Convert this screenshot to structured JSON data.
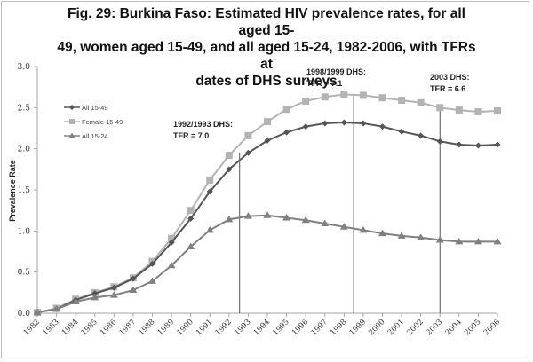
{
  "chart_data": {
    "type": "line",
    "title": "Fig. 29:  Burkina Faso:  Estimated HIV prevalence rates, for all aged 15-49, women aged 15-49, and all aged 15-24, 1982-2006, with TFRs at dates of DHS surveys",
    "title_lines": [
      "Fig. 29:  Burkina Faso:  Estimated HIV prevalence rates, for all aged 15-",
      "49, women aged 15-49, and all aged 15-24, 1982-2006, with TFRs at",
      "dates of DHS surveys"
    ],
    "xlabel": "",
    "ylabel": "Prevalence Rate",
    "ylim": [
      0,
      3.0
    ],
    "yticks": [
      "0.0",
      "0.5",
      "1.0",
      "1.5",
      "2.0",
      "2.5",
      "3.0"
    ],
    "ytick_values": [
      0,
      0.5,
      1.0,
      1.5,
      2.0,
      2.5,
      3.0
    ],
    "grid": false,
    "legend_position": "top-left",
    "categories": [
      "1982",
      "1983",
      "1984",
      "1985",
      "1986",
      "1987",
      "1988",
      "1989",
      "1990",
      "1991",
      "1992",
      "1993",
      "1994",
      "1995",
      "1996",
      "1997",
      "1998",
      "1999",
      "2000",
      "2001",
      "2002",
      "2003",
      "2004",
      "2005",
      "2006"
    ],
    "series": [
      {
        "name": "All 15-49",
        "marker": "diamond",
        "color": "#555555",
        "values": [
          0.01,
          0.05,
          0.16,
          0.24,
          0.31,
          0.42,
          0.6,
          0.86,
          1.15,
          1.48,
          1.75,
          1.95,
          2.1,
          2.2,
          2.27,
          2.31,
          2.32,
          2.31,
          2.27,
          2.21,
          2.16,
          2.09,
          2.05,
          2.04,
          2.05
        ]
      },
      {
        "name": "Female 15-49",
        "marker": "square",
        "color": "#b3b3b3",
        "values": [
          0.01,
          0.06,
          0.17,
          0.25,
          0.32,
          0.43,
          0.63,
          0.91,
          1.25,
          1.62,
          1.92,
          2.16,
          2.33,
          2.48,
          2.58,
          2.63,
          2.66,
          2.65,
          2.62,
          2.59,
          2.56,
          2.5,
          2.47,
          2.45,
          2.46
        ]
      },
      {
        "name": "All 15-24",
        "marker": "triangle",
        "color": "#808080",
        "values": [
          0.01,
          0.05,
          0.14,
          0.19,
          0.22,
          0.28,
          0.39,
          0.58,
          0.81,
          1.01,
          1.14,
          1.18,
          1.19,
          1.16,
          1.13,
          1.09,
          1.05,
          1.01,
          0.97,
          0.94,
          0.92,
          0.89,
          0.87,
          0.87,
          0.87
        ]
      }
    ],
    "annotations": [
      {
        "line1": "1992/1993 DHS:",
        "line2": "TFR = 7.0",
        "x": 1992.55,
        "line_top_value": 1.95
      },
      {
        "line1": "1998/1999 DHS:",
        "line2": "TFR = 7.1",
        "x": 1998.5,
        "line_top_value": 2.66
      },
      {
        "line1": "2003 DHS:",
        "line2": "TFR = 6.6",
        "x": 2003.0,
        "line_top_value": 2.5
      }
    ]
  }
}
